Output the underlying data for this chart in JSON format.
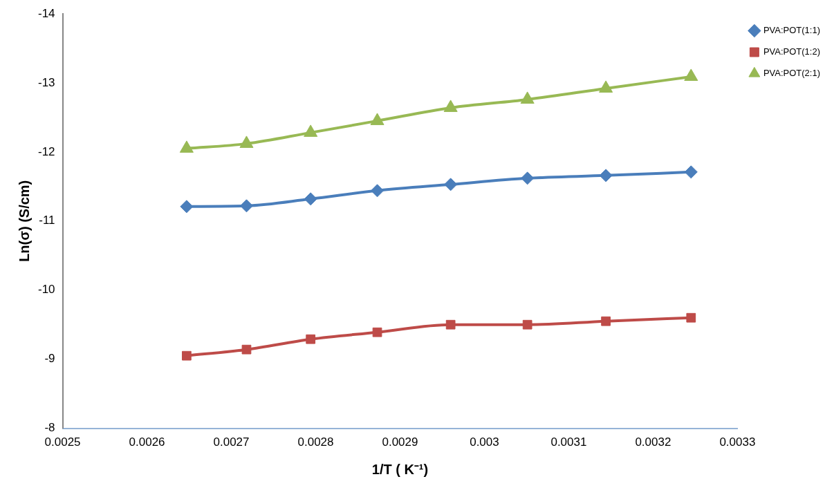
{
  "chart_data": {
    "type": "line",
    "xlabel": "1/T ( K⁻¹)",
    "ylabel": "Ln(σ) (S/cm)",
    "x": [
      0.002647,
      0.002718,
      0.002794,
      0.002873,
      0.00296,
      0.003051,
      0.003144,
      0.003245
    ],
    "xlim": [
      0.0025,
      0.0033
    ],
    "xticks": [
      0.0025,
      0.0026,
      0.0027,
      0.0028,
      0.0029,
      0.003,
      0.0031,
      0.0032,
      0.0033
    ],
    "ylim": [
      -8,
      -14
    ],
    "yticks": [
      -8,
      -9,
      -10,
      -11,
      -12,
      -13,
      -14
    ],
    "grid": false,
    "legend": "top right",
    "line_style": "solid",
    "series": [
      {
        "name": "PVA:POT(1:1)",
        "color": "#4a7ebb",
        "marker": "diamond",
        "values": [
          -11.21,
          -11.22,
          -11.32,
          -11.44,
          -11.53,
          -11.62,
          -11.66,
          -11.71
        ]
      },
      {
        "name": "PVA:POT(1:2)",
        "color": "#be4b48",
        "marker": "square",
        "values": [
          -9.05,
          -9.14,
          -9.29,
          -9.39,
          -9.5,
          -9.5,
          -9.55,
          -9.6
        ]
      },
      {
        "name": "PVA:POT(2:1)",
        "color": "#98b954",
        "marker": "triangle",
        "values": [
          -12.05,
          -12.12,
          -12.28,
          -12.45,
          -12.64,
          -12.76,
          -12.92,
          -13.09
        ]
      }
    ]
  }
}
